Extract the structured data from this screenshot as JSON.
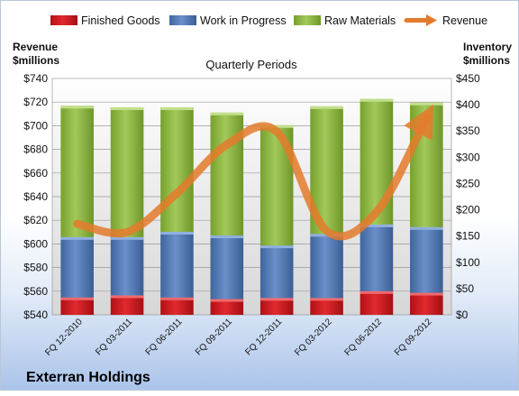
{
  "chart_data": {
    "type": "bar",
    "company": "Exterran Holdings",
    "title": "Quarterly Periods",
    "left_axis_title": [
      "Revenue",
      "$millions"
    ],
    "right_axis_title": [
      "Inventory",
      "$millions"
    ],
    "legend_position": "top",
    "grid": true,
    "categories": [
      "FQ 12-2010",
      "FQ 03-2011",
      "FQ 06-2011",
      "FQ 09-2011",
      "FQ 12-2011",
      "FQ 03-2012",
      "FQ 06-2012",
      "FQ 09-2012"
    ],
    "left_axis": {
      "min": 540,
      "max": 740,
      "step": 20,
      "format": "$",
      "ticks": [
        "$540",
        "$560",
        "$580",
        "$600",
        "$620",
        "$640",
        "$660",
        "$680",
        "$700",
        "$720",
        "$740"
      ]
    },
    "right_axis": {
      "min": 0,
      "max": 450,
      "step": 50,
      "format": "$",
      "ticks": [
        "$0",
        "$50",
        "$100",
        "$150",
        "$200",
        "$250",
        "$300",
        "$350",
        "$400",
        "$450"
      ]
    },
    "series": [
      {
        "name": "Finished Goods",
        "axis": "right",
        "kind": "stacked-bar",
        "color": "#c8171c",
        "values": [
          33,
          37,
          33,
          30,
          32,
          32,
          45,
          42
        ]
      },
      {
        "name": "Work in Progress",
        "axis": "right",
        "kind": "stacked-bar",
        "color": "#4f79b7",
        "values": [
          115,
          111,
          125,
          121,
          100,
          122,
          127,
          125
        ]
      },
      {
        "name": "Raw Materials",
        "axis": "right",
        "kind": "stacked-bar",
        "color": "#8cb53c",
        "values": [
          250,
          247,
          237,
          234,
          229,
          243,
          239,
          237
        ]
      },
      {
        "name": "Revenue",
        "axis": "left",
        "kind": "line",
        "color": "#e47a2c",
        "values": [
          617,
          610,
          643,
          684,
          695,
          611,
          627,
          707
        ]
      }
    ]
  }
}
